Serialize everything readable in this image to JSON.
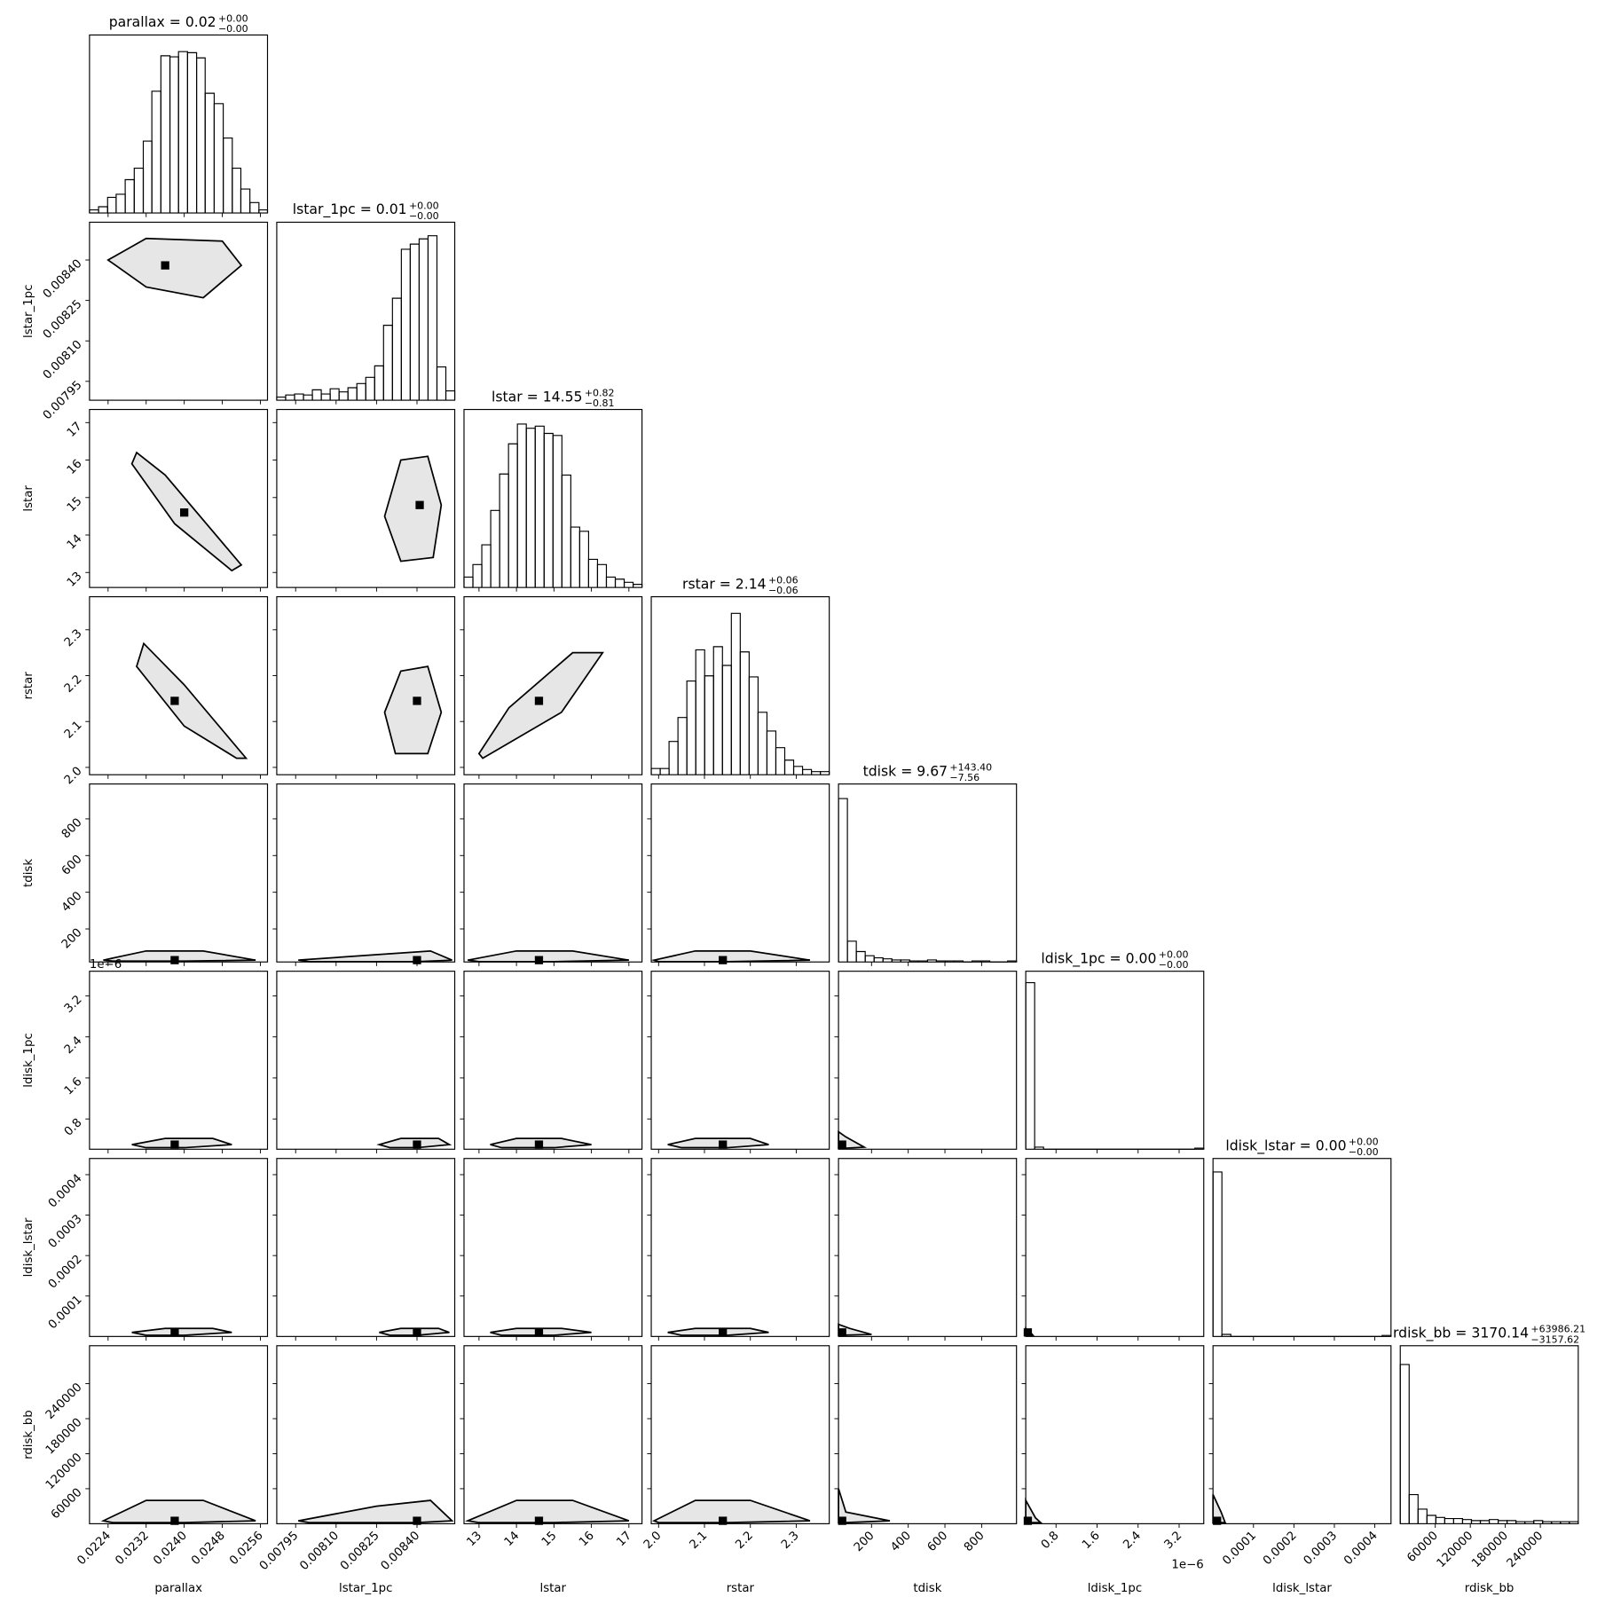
{
  "chart_data": {
    "type": "corner",
    "params": [
      {
        "label": "parallax",
        "title": {
          "main": "parallax = 0.02",
          "upper": "+0.00",
          "lower": "−0.00"
        },
        "xlim": [
          0.02201,
          0.02575
        ],
        "ticks": [
          0.0224,
          0.0232,
          {
            "value": 0.024,
            "label": "0.0240"
          },
          0.0248,
          0.0256
        ],
        "bins": [
          0.02201,
          0.0222,
          0.02239,
          0.02257,
          0.02276,
          0.02295,
          0.02314,
          0.02332,
          0.02351,
          0.0237,
          0.02388,
          0.02407,
          0.02426,
          0.02444,
          0.02463,
          0.02482,
          0.02501,
          0.02519,
          0.02538,
          0.02557,
          0.02575
        ],
        "counts": [
          3,
          6,
          15,
          18,
          32,
          43,
          69,
          117,
          151,
          150,
          155,
          154,
          149,
          115,
          105,
          72,
          43,
          23,
          10,
          3
        ],
        "hist_ylim": [
          0,
          171
        ]
      },
      {
        "label": "lstar_1pc",
        "title": {
          "main": "lstar_1pc = 0.01",
          "upper": "+0.00",
          "lower": "−0.00"
        },
        "xlim": [
          0.00788,
          0.00854
        ],
        "ticks": [
          0.00795,
          {
            "value": 0.0081,
            "label": "0.00810"
          },
          0.00825,
          {
            "value": 0.0084,
            "label": "0.00840"
          }
        ],
        "bins": [
          0.00788,
          0.007913,
          0.007946,
          0.007979,
          0.008012,
          0.008045,
          0.008078,
          0.008111,
          0.008144,
          0.008177,
          0.00821,
          0.008243,
          0.008276,
          0.008309,
          0.008342,
          0.008375,
          0.008408,
          0.008441,
          0.008474,
          0.008507,
          0.00854
        ],
        "counts": [
          3,
          5,
          6,
          5,
          10,
          6,
          11,
          8,
          12,
          16,
          22,
          33,
          72,
          98,
          145,
          150,
          155,
          158,
          32,
          9
        ],
        "hist_ylim": [
          0,
          171
        ]
      },
      {
        "label": "lstar",
        "title": {
          "main": "lstar = 14.55",
          "upper": "+0.82",
          "lower": "−0.81"
        },
        "xlim": [
          12.6,
          17.35
        ],
        "ticks": [
          13,
          14,
          15,
          16,
          17
        ],
        "bins": [
          12.6,
          12.8375,
          13.075,
          13.3125,
          13.55,
          13.7875,
          14.025,
          14.2625,
          14.5,
          14.7375,
          14.975,
          15.2125,
          15.45,
          15.6875,
          15.925,
          16.1625,
          16.4,
          16.6375,
          16.875,
          17.1125,
          17.35
        ],
        "counts": [
          10,
          22,
          41,
          74,
          109,
          138,
          157,
          153,
          155,
          148,
          146,
          108,
          58,
          54,
          27,
          22,
          10,
          8,
          5,
          3
        ],
        "hist_ylim": [
          0,
          171
        ]
      },
      {
        "label": "rstar",
        "title": {
          "main": "rstar = 2.14",
          "upper": "+0.06",
          "lower": "−0.06"
        },
        "xlim": [
          1.984,
          2.372
        ],
        "ticks": [
          {
            "value": 2.0,
            "label": "2.0"
          },
          2.1,
          2.2,
          2.3
        ],
        "bins": [
          1.984,
          2.0034,
          2.0228,
          2.0422,
          2.0616,
          2.081,
          2.1004,
          2.1198,
          2.1392,
          2.1586,
          2.178,
          2.1974,
          2.2168,
          2.2362,
          2.2556,
          2.275,
          2.2944,
          2.3138,
          2.3332,
          2.3526,
          2.372
        ],
        "counts": [
          6,
          6,
          32,
          55,
          90,
          120,
          95,
          123,
          105,
          155,
          118,
          94,
          60,
          42,
          26,
          14,
          8,
          5,
          3,
          3
        ],
        "hist_ylim": [
          0,
          171
        ]
      },
      {
        "label": "tdisk",
        "title": {
          "main": "tdisk = 9.67",
          "upper": "+143.40",
          "lower": "−7.56"
        },
        "xlim": [
          20,
          990
        ],
        "ticks": [
          200,
          400,
          600,
          800
        ],
        "bins": [
          20,
          68.5,
          117,
          165.5,
          214,
          262.5,
          311,
          359.5,
          408,
          456.5,
          505,
          553.5,
          602,
          650.5,
          699,
          747.5,
          796,
          844.5,
          893,
          941.5,
          990
        ],
        "counts": [
          157,
          20,
          10,
          6,
          4,
          3,
          2,
          2,
          1,
          1,
          2,
          1,
          1,
          1,
          0,
          1,
          1,
          0,
          0,
          1
        ],
        "hist_ylim": [
          0,
          171
        ]
      },
      {
        "label": "ldisk_1pc",
        "title": {
          "main": "ldisk_1pc = 0.00",
          "upper": "+0.00",
          "lower": "−0.00"
        },
        "xlim": [
          0.21,
          3.68
        ],
        "offset": "1e−6",
        "ticks": [
          0.8,
          1.6,
          2.4,
          3.2
        ],
        "bins": [
          0.21,
          0.3835,
          0.557,
          0.7305,
          0.904,
          1.0775,
          1.251,
          1.4245,
          1.598,
          1.7715,
          1.945,
          2.1185,
          2.292,
          2.4655,
          2.639,
          2.8125,
          2.986,
          3.1595,
          3.333,
          3.5065,
          3.68
        ],
        "counts": [
          160,
          2,
          0,
          0,
          0,
          0,
          0,
          0,
          0,
          0,
          0,
          0,
          0,
          0,
          0,
          0,
          0,
          0,
          0,
          1
        ],
        "hist_ylim": [
          0,
          171
        ]
      },
      {
        "label": "ldisk_lstar",
        "title": {
          "main": "ldisk_lstar = 0.00",
          "upper": "+0.00",
          "lower": "−0.00"
        },
        "xlim": [
          0,
          0.00044
        ],
        "ticks": [
          0.0001,
          0.0002,
          0.0003,
          0.0004
        ],
        "bins": [
          0,
          2.2e-05,
          4.4e-05,
          6.6e-05,
          8.8e-05,
          0.00011,
          0.000132,
          0.000154,
          0.000176,
          0.000198,
          0.00022,
          0.000242,
          0.000264,
          0.000286,
          0.000308,
          0.00033,
          0.000352,
          0.000374,
          0.000396,
          0.000418,
          0.00044
        ],
        "counts": [
          158,
          2,
          0,
          0,
          0,
          0,
          0,
          0,
          0,
          0,
          0,
          0,
          0,
          0,
          0,
          0,
          0,
          0,
          0,
          1
        ],
        "hist_ylim": [
          0,
          171
        ]
      },
      {
        "label": "rdisk_bb",
        "title": {
          "main": "rdisk_bb = 3170.14",
          "upper": "+63986.21",
          "lower": "−3157.62"
        },
        "xlim": [
          0,
          305000
        ],
        "ticks": [
          60000,
          120000,
          180000,
          240000
        ],
        "bins": [
          0,
          15250,
          30500,
          45750,
          61000,
          76250,
          91500,
          106750,
          122000,
          137250,
          152500,
          167750,
          183000,
          198250,
          213500,
          228750,
          244000,
          259250,
          274500,
          289750,
          305000
        ],
        "counts": [
          153,
          28,
          14,
          8,
          6,
          5,
          5,
          4,
          3,
          3,
          4,
          3,
          3,
          2,
          2,
          3,
          2,
          2,
          2,
          2
        ],
        "hist_ylim": [
          0,
          171
        ]
      }
    ],
    "panels": [
      [
        {
          "contour_x": [
            0.0224,
            0.0232,
            0.0248,
            0.0252,
            0.0244,
            0.0232
          ],
          "contour_y": [
            0.0084,
            0.00848,
            0.00847,
            0.00838,
            0.00826,
            0.0083
          ],
          "peak_x": 0.0236,
          "peak_y": 0.00838
        }
      ],
      [
        {
          "contour_x": [
            0.023,
            0.0236,
            0.0252,
            0.025,
            0.0238,
            0.0229
          ],
          "contour_y": [
            16.2,
            15.6,
            13.2,
            13.05,
            14.3,
            15.9
          ],
          "peak_x": 0.024,
          "peak_y": 14.6
        },
        {
          "contour_x": [
            0.00828,
            0.00834,
            0.00844,
            0.00849,
            0.00846,
            0.00834
          ],
          "contour_y": [
            14.5,
            16.0,
            16.1,
            14.8,
            13.4,
            13.3
          ],
          "peak_x": 0.00841,
          "peak_y": 14.8
        }
      ],
      [
        {
          "contour_x": [
            0.02315,
            0.024,
            0.0253,
            0.0251,
            0.024,
            0.023
          ],
          "contour_y": [
            2.27,
            2.18,
            2.02,
            2.02,
            2.09,
            2.22
          ],
          "peak_x": 0.0238,
          "peak_y": 2.145
        },
        {
          "contour_x": [
            0.00828,
            0.00834,
            0.00844,
            0.00849,
            0.00844,
            0.00832
          ],
          "contour_y": [
            2.12,
            2.21,
            2.22,
            2.12,
            2.03,
            2.03
          ],
          "peak_x": 0.0084,
          "peak_y": 2.145
        },
        {
          "contour_x": [
            13.0,
            13.8,
            15.5,
            16.3,
            15.2,
            13.1
          ],
          "contour_y": [
            2.03,
            2.13,
            2.25,
            2.25,
            2.12,
            2.02
          ],
          "peak_x": 14.6,
          "peak_y": 2.145
        }
      ],
      [
        {
          "contour_x": [
            0.0223,
            0.0232,
            0.0244,
            0.0255,
            0.024,
            0.0225
          ],
          "contour_y": [
            30,
            80,
            80,
            30,
            25,
            25
          ],
          "peak_x": 0.0238,
          "peak_y": 30
        },
        {
          "contour_x": [
            0.00796,
            0.00825,
            0.00845,
            0.00853,
            0.0084,
            0.008
          ],
          "contour_y": [
            30,
            60,
            80,
            30,
            22,
            22
          ],
          "peak_x": 0.0084,
          "peak_y": 30
        },
        {
          "contour_x": [
            12.7,
            14,
            15.5,
            17,
            15,
            13
          ],
          "contour_y": [
            30,
            80,
            80,
            30,
            22,
            22
          ],
          "peak_x": 14.6,
          "peak_y": 30
        },
        {
          "contour_x": [
            1.99,
            2.08,
            2.2,
            2.33,
            2.15,
            2.0
          ],
          "contour_y": [
            30,
            80,
            80,
            30,
            22,
            22
          ],
          "peak_x": 2.14,
          "peak_y": 30
        }
      ],
      [
        {
          "contour_x": [
            0.0229,
            0.0236,
            0.0246,
            0.025,
            0.024,
            0.0232
          ],
          "contour_y": [
            0.3,
            0.42,
            0.42,
            0.3,
            0.24,
            0.24
          ],
          "peak_x": 0.0238,
          "peak_y": 0.3
        },
        {
          "contour_x": [
            0.00826,
            0.00834,
            0.00848,
            0.00852,
            0.0084,
            0.0083
          ],
          "contour_y": [
            0.3,
            0.42,
            0.42,
            0.3,
            0.24,
            0.24
          ],
          "peak_x": 0.0084,
          "peak_y": 0.3
        },
        {
          "contour_x": [
            13.3,
            14,
            15.2,
            16,
            15,
            13.6
          ],
          "contour_y": [
            0.3,
            0.42,
            0.42,
            0.3,
            0.24,
            0.24
          ],
          "peak_x": 14.6,
          "peak_y": 0.3
        },
        {
          "contour_x": [
            2.02,
            2.08,
            2.2,
            2.24,
            2.15,
            2.05
          ],
          "contour_y": [
            0.3,
            0.42,
            0.42,
            0.3,
            0.24,
            0.24
          ],
          "peak_x": 2.14,
          "peak_y": 0.3
        },
        {
          "contour_x": [
            20,
            60,
            160,
            60,
            20
          ],
          "contour_y": [
            0.55,
            0.45,
            0.25,
            0.23,
            0.23
          ],
          "peak_x": 40,
          "peak_y": 0.3
        }
      ],
      [
        {
          "contour_x": [
            0.0229,
            0.0236,
            0.0246,
            0.025,
            0.024,
            0.0232
          ],
          "contour_y": [
            1e-05,
            2e-05,
            2e-05,
            1e-05,
            3e-06,
            3e-06
          ],
          "peak_x": 0.0238,
          "peak_y": 1e-05
        },
        {
          "contour_x": [
            0.00826,
            0.00834,
            0.00848,
            0.00852,
            0.0084,
            0.0083
          ],
          "contour_y": [
            1e-05,
            2e-05,
            2e-05,
            1e-05,
            3e-06,
            3e-06
          ],
          "peak_x": 0.0084,
          "peak_y": 1e-05
        },
        {
          "contour_x": [
            13.3,
            14,
            15.2,
            16,
            15,
            13.6
          ],
          "contour_y": [
            1e-05,
            2e-05,
            2e-05,
            1e-05,
            3e-06,
            3e-06
          ],
          "peak_x": 14.6,
          "peak_y": 1e-05
        },
        {
          "contour_x": [
            2.02,
            2.08,
            2.2,
            2.24,
            2.15,
            2.05
          ],
          "contour_y": [
            1e-05,
            2e-05,
            2e-05,
            1e-05,
            3e-06,
            3e-06
          ],
          "peak_x": 2.14,
          "peak_y": 1e-05
        },
        {
          "contour_x": [
            20,
            80,
            200,
            20
          ],
          "contour_y": [
            3e-05,
            2e-05,
            5e-06,
            3e-06
          ],
          "peak_x": 40,
          "peak_y": 1e-05
        },
        {
          "contour_x": [
            0.21,
            0.3,
            0.35,
            0.21
          ],
          "contour_y": [
            2e-05,
            1e-05,
            3e-06,
            3e-06
          ],
          "peak_x": 0.25,
          "peak_y": 1e-05
        }
      ],
      [
        {
          "contour_x": [
            0.0223,
            0.0232,
            0.0244,
            0.0255,
            0.024,
            0.0225
          ],
          "contour_y": [
            5000,
            40000,
            40000,
            5000,
            2000,
            2000
          ],
          "peak_x": 0.0238,
          "peak_y": 5000
        },
        {
          "contour_x": [
            0.00796,
            0.00825,
            0.00845,
            0.00853,
            0.0084,
            0.008
          ],
          "contour_y": [
            5000,
            30000,
            40000,
            5000,
            2000,
            2000
          ],
          "peak_x": 0.0084,
          "peak_y": 5000
        },
        {
          "contour_x": [
            12.7,
            14,
            15.5,
            17,
            15,
            13
          ],
          "contour_y": [
            5000,
            40000,
            40000,
            5000,
            2000,
            2000
          ],
          "peak_x": 14.6,
          "peak_y": 5000
        },
        {
          "contour_x": [
            1.99,
            2.08,
            2.2,
            2.33,
            2.15,
            2.0
          ],
          "contour_y": [
            5000,
            40000,
            40000,
            5000,
            2000,
            2000
          ],
          "peak_x": 2.14,
          "peak_y": 5000
        },
        {
          "contour_x": [
            20,
            60,
            300,
            60,
            20
          ],
          "contour_y": [
            60000,
            20000,
            5000,
            2000,
            2000
          ],
          "peak_x": 40,
          "peak_y": 5000
        },
        {
          "contour_x": [
            0.21,
            0.4,
            0.5,
            0.21
          ],
          "contour_y": [
            40000,
            10000,
            2000,
            2000
          ],
          "peak_x": 0.25,
          "peak_y": 5000
        },
        {
          "contour_x": [
            0,
            2e-05,
            3e-05,
            0
          ],
          "contour_y": [
            50000,
            20000,
            2000,
            2000
          ],
          "peak_x": 1e-05,
          "peak_y": 5000
        }
      ]
    ]
  }
}
